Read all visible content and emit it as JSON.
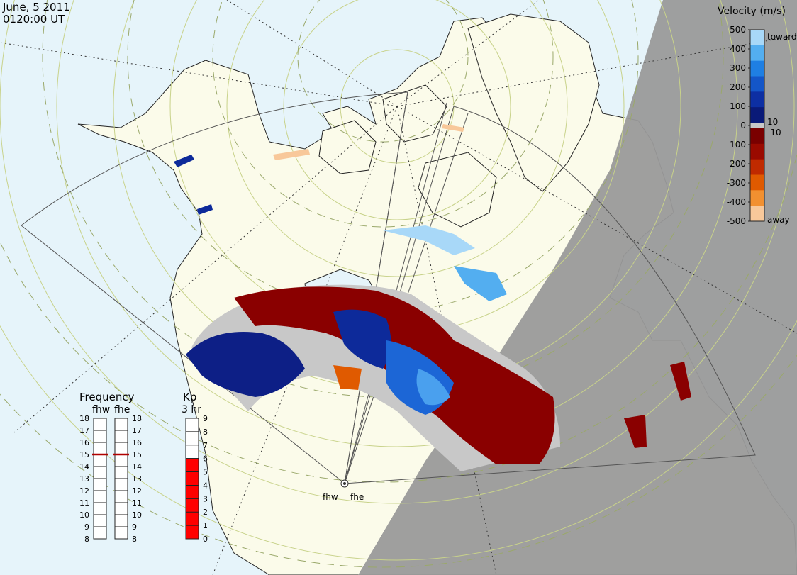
{
  "header": {
    "date": "June, 5 2011",
    "time": "0120:00 UT"
  },
  "velocity_scale": {
    "title": "Velocity (m/s)",
    "ticks": [
      "500",
      "400",
      "300",
      "200",
      "100",
      "0",
      "-100",
      "-200",
      "-300",
      "-400",
      "-500"
    ],
    "inner_ticks": [
      "10",
      "-10"
    ],
    "toward_label": "toward",
    "away_label": "away",
    "colors": {
      "toward": [
        "#0a1a78",
        "#0d2fa3",
        "#1456c8",
        "#1f7fe3",
        "#53aef0",
        "#a8d8f8"
      ],
      "away": [
        "#7a0000",
        "#9a0a00",
        "#c02a00",
        "#e05a00",
        "#f29030",
        "#f8c89a"
      ],
      "ground_scatter": "#c8c8c8"
    }
  },
  "frequency_panel": {
    "title": "Frequency",
    "radars": [
      "fhw",
      "fhe"
    ],
    "ticks": [
      "18",
      "17",
      "16",
      "15",
      "14",
      "13",
      "12",
      "11",
      "10",
      "9",
      "8"
    ],
    "values_mhz": [
      15,
      15
    ]
  },
  "kp_panel": {
    "title": "Kp",
    "subtitle": "3 hr",
    "ticks": [
      "9",
      "8",
      "7",
      "6",
      "5",
      "4",
      "3",
      "2",
      "1",
      "0"
    ],
    "value": 6,
    "color": "#ff0000"
  },
  "radar_sites": [
    "fhw",
    "fhe"
  ],
  "map_colors": {
    "ocean": "#e6f4fa",
    "land": "#fbfbea",
    "night": "#9a9a9a",
    "grid": "#c8d28a"
  }
}
